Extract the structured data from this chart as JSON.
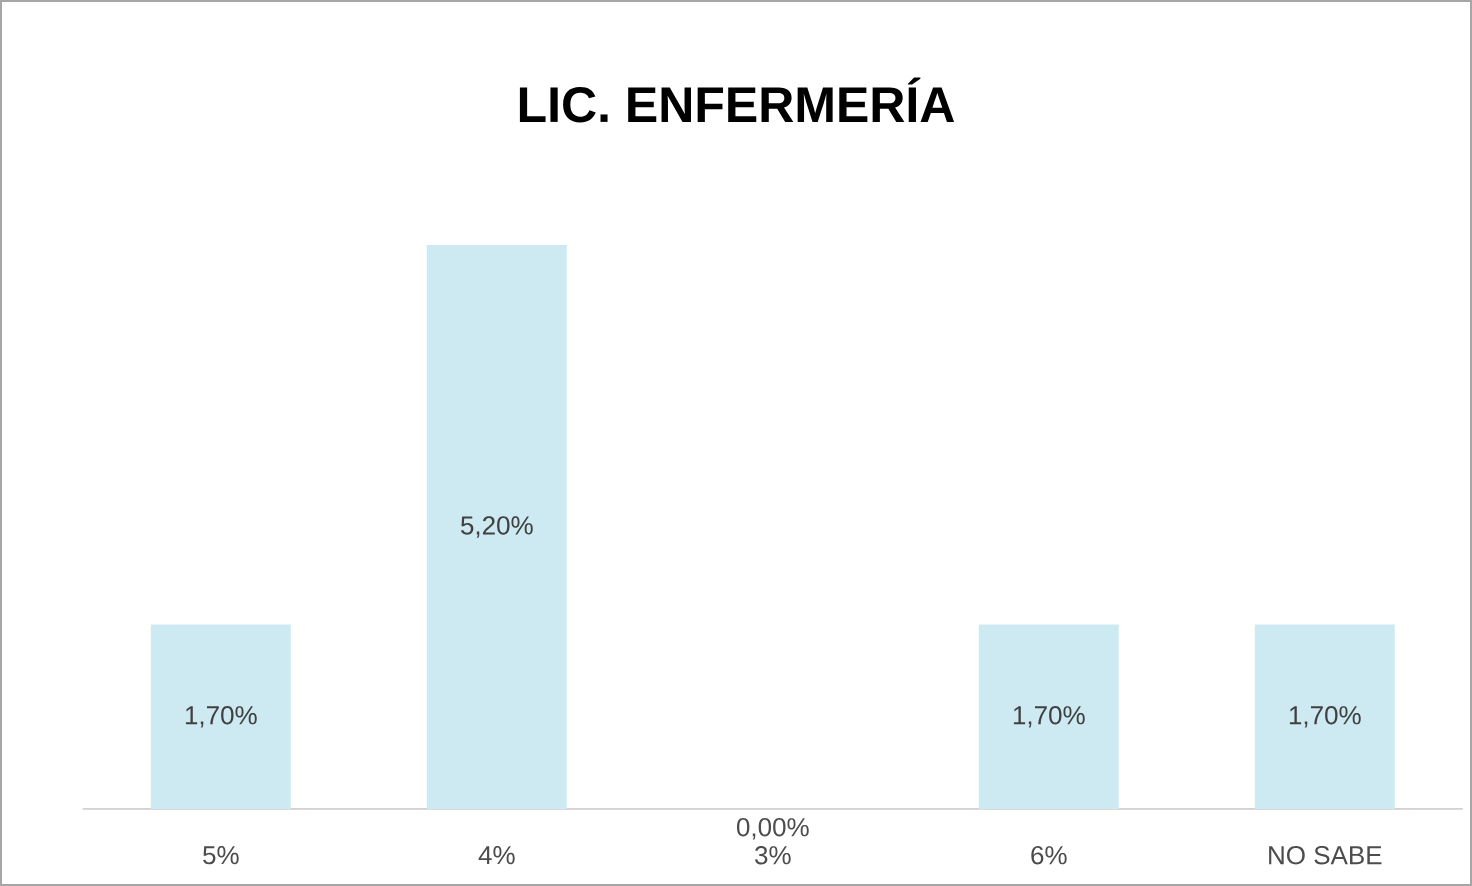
{
  "chart_data": {
    "type": "bar",
    "title": "LIC. ENFERMERÍA",
    "categories": [
      "5%",
      "4%",
      "3%",
      "6%",
      "NO SABE"
    ],
    "values": [
      1.7,
      5.2,
      0,
      1.7,
      1.7
    ],
    "value_labels": [
      "1,70%",
      "5,20%",
      "0,00%",
      "1,70%",
      "1,70%"
    ],
    "color": "#cdeaf2"
  }
}
